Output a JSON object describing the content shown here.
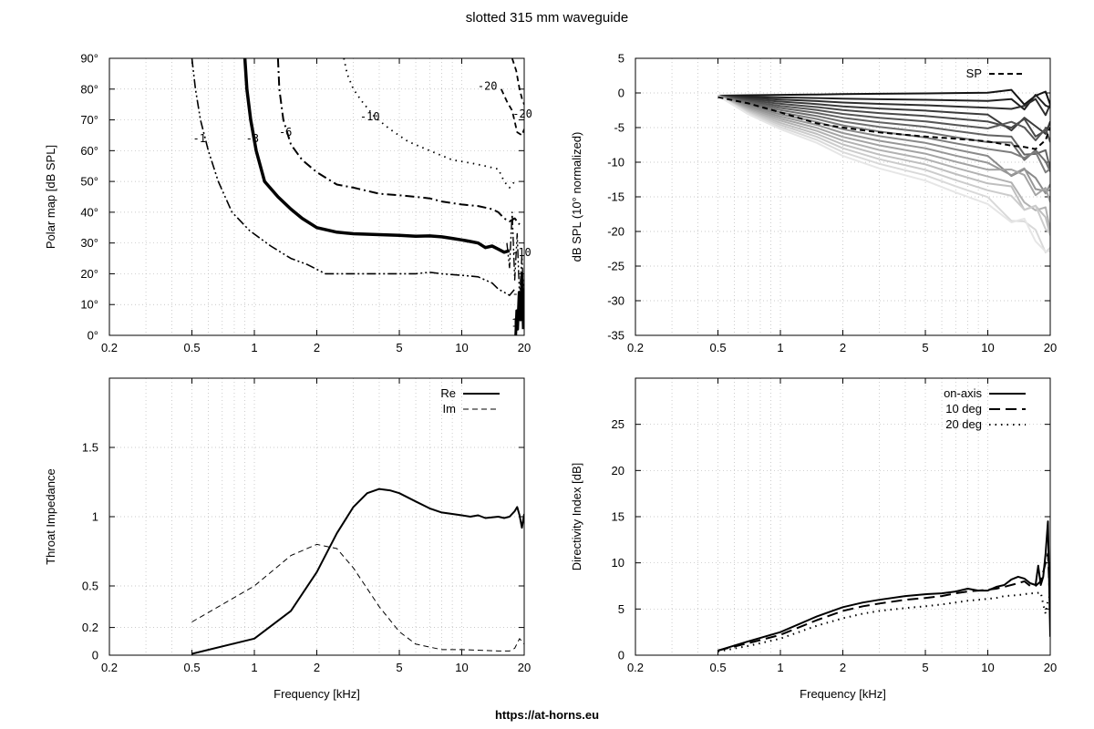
{
  "page": {
    "title": "slotted 315 mm waveguide",
    "footer": "https://at-horns.eu"
  },
  "chart_data": [
    {
      "id": "polar",
      "type": "contour",
      "xscale": "log",
      "xlim": [
        0.2,
        20
      ],
      "ylim": [
        0,
        90
      ],
      "xticks": [
        0.2,
        0.5,
        1,
        2,
        5,
        10,
        20
      ],
      "xtick_labels": [
        "0.2",
        "0.5",
        "1",
        "2",
        "5",
        "10",
        "20"
      ],
      "yticks": [
        0,
        10,
        20,
        30,
        40,
        50,
        60,
        70,
        80,
        90
      ],
      "ytick_labels": [
        "0°",
        "10°",
        "20°",
        "30°",
        "40°",
        "50°",
        "60°",
        "70°",
        "80°",
        "90°"
      ],
      "xlabel": "",
      "ylabel": "Polar map [dB SPL]",
      "series": [
        {
          "level": "-1",
          "dash": "dashdotdot",
          "width": 1.6,
          "points": [
            [
              0.5,
              90
            ],
            [
              0.52,
              80
            ],
            [
              0.55,
              70
            ],
            [
              0.6,
              60
            ],
            [
              0.67,
              50
            ],
            [
              0.78,
              40
            ],
            [
              0.95,
              34
            ],
            [
              1.2,
              29
            ],
            [
              1.5,
              25
            ],
            [
              1.8,
              23
            ],
            [
              2.2,
              20
            ],
            [
              3,
              20
            ],
            [
              4,
              20
            ],
            [
              5,
              20
            ],
            [
              6,
              20
            ],
            [
              7,
              20.5
            ],
            [
              8,
              20
            ],
            [
              10,
              19.5
            ],
            [
              12,
              19
            ],
            [
              14,
              17
            ],
            [
              15,
              15
            ],
            [
              16,
              14
            ],
            [
              17,
              13
            ],
            [
              18,
              15
            ]
          ]
        },
        {
          "level": "-3",
          "dash": "solid",
          "width": 3.5,
          "points": [
            [
              0.9,
              90
            ],
            [
              0.92,
              80
            ],
            [
              0.96,
              70
            ],
            [
              1.02,
              60
            ],
            [
              1.12,
              50
            ],
            [
              1.3,
              45
            ],
            [
              1.5,
              41
            ],
            [
              1.7,
              38
            ],
            [
              2,
              35
            ],
            [
              2.5,
              33.5
            ],
            [
              3,
              33
            ],
            [
              4,
              32.7
            ],
            [
              5,
              32.5
            ],
            [
              6,
              32.2
            ],
            [
              7,
              32.3
            ],
            [
              8,
              32
            ],
            [
              9,
              31.5
            ],
            [
              10,
              31
            ],
            [
              11,
              30.5
            ],
            [
              12,
              30
            ],
            [
              13,
              28.5
            ],
            [
              14,
              29
            ],
            [
              15,
              28
            ],
            [
              16,
              27
            ],
            [
              17,
              27.5
            ]
          ]
        },
        {
          "level": "-6",
          "dash": "dashdot",
          "width": 2,
          "points": [
            [
              1.3,
              90
            ],
            [
              1.32,
              80
            ],
            [
              1.38,
              70
            ],
            [
              1.5,
              62
            ],
            [
              1.7,
              57
            ],
            [
              2,
              53
            ],
            [
              2.5,
              49
            ],
            [
              3,
              48
            ],
            [
              4,
              46
            ],
            [
              5,
              45.5
            ],
            [
              6,
              45
            ],
            [
              7,
              44.5
            ],
            [
              8,
              43.5
            ],
            [
              10,
              42.5
            ],
            [
              12,
              42
            ],
            [
              14,
              41
            ],
            [
              15,
              40
            ],
            [
              16,
              38
            ],
            [
              17,
              37
            ],
            [
              18,
              38
            ],
            [
              19,
              36
            ]
          ]
        },
        {
          "level": "-10",
          "dash": "dotted",
          "width": 1.8,
          "points": [
            [
              2.7,
              90
            ],
            [
              2.8,
              85
            ],
            [
              3,
              80
            ],
            [
              3.3,
              76
            ],
            [
              3.8,
              71
            ],
            [
              4.5,
              67
            ],
            [
              5.5,
              63
            ],
            [
              7,
              60
            ],
            [
              9,
              57
            ],
            [
              11,
              56
            ],
            [
              13,
              55
            ],
            [
              15,
              54
            ],
            [
              16,
              50
            ],
            [
              17,
              48
            ],
            [
              18,
              50
            ]
          ]
        },
        {
          "level": "-20",
          "dash": "dashed",
          "width": 1.8,
          "points": [
            [
              15.5,
              80
            ],
            [
              16.5,
              76
            ],
            [
              17.5,
              73
            ],
            [
              18.5,
              66
            ],
            [
              19.5,
              65
            ],
            [
              20,
              67
            ]
          ]
        },
        {
          "level": "-20",
          "dash": "dashed",
          "width": 1.8,
          "points": [
            [
              17.5,
              90
            ],
            [
              18.3,
              86
            ],
            [
              19,
              80
            ],
            [
              19.5,
              77
            ],
            [
              20,
              75
            ]
          ]
        }
      ],
      "labels": [
        {
          "text": "-1",
          "x": 0.5,
          "y": 64
        },
        {
          "text": "-3",
          "x": 0.9,
          "y": 64
        },
        {
          "text": "-6",
          "x": 1.3,
          "y": 66
        },
        {
          "text": "-10",
          "x": 3.2,
          "y": 71
        },
        {
          "text": "-20",
          "x": 11.8,
          "y": 81
        },
        {
          "text": "-20",
          "x": 17.4,
          "y": 72
        },
        {
          "text": "-10",
          "x": 17.2,
          "y": 27
        },
        {
          "text": "-1",
          "x": 17.3,
          "y": 13.5
        },
        {
          "text": "1",
          "x": 17.2,
          "y": 4
        }
      ]
    },
    {
      "id": "spl",
      "type": "line",
      "xscale": "log",
      "xlim": [
        0.2,
        20
      ],
      "ylim": [
        -35,
        5
      ],
      "xticks": [
        0.2,
        0.5,
        1,
        2,
        5,
        10,
        20
      ],
      "xtick_labels": [
        "0.2",
        "0.5",
        "1",
        "2",
        "5",
        "10",
        "20"
      ],
      "yticks": [
        -35,
        -30,
        -25,
        -20,
        -15,
        -10,
        -5,
        0,
        5
      ],
      "ytick_labels": [
        "-35",
        "-30",
        "-25",
        "-20",
        "-15",
        "-10",
        "-5",
        "0",
        "5"
      ],
      "xlabel": "",
      "ylabel": "dB SPL (10° normalized)",
      "x": [
        0.5,
        0.7,
        1,
        1.5,
        2,
        3,
        5,
        7,
        10,
        13,
        15,
        17,
        19,
        20
      ],
      "final_depths": [
        0.3,
        -1.5,
        -3,
        -4.5,
        -6,
        -7.5,
        -9,
        -10.5,
        -12,
        -13.5,
        -15,
        -16.5,
        -18,
        -19.5,
        -21,
        -22.5,
        -24
      ],
      "sp": {
        "name": "SP",
        "values": [
          -0.6,
          -1.5,
          -2.8,
          -4.4,
          -5,
          -5.7,
          -6.3,
          -6.6,
          -7,
          -7.6,
          -7.8,
          -8.1,
          -6.8,
          -5
        ]
      }
    },
    {
      "id": "impedance",
      "type": "line",
      "xscale": "log",
      "xlim": [
        0.2,
        20
      ],
      "ylim": [
        0,
        2
      ],
      "xticks": [
        0.2,
        0.5,
        1,
        2,
        5,
        10,
        20
      ],
      "xtick_labels": [
        "0.2",
        "0.5",
        "1",
        "2",
        "5",
        "10",
        "20"
      ],
      "yticks": [
        0,
        0.2,
        0.5,
        1,
        1.5
      ],
      "ytick_labels": [
        "0",
        "0.2",
        "0.5",
        "1",
        "1.5"
      ],
      "xlabel": "Frequency [kHz]",
      "ylabel": "Throat Impedance",
      "series": [
        {
          "name": "Re",
          "dash": "solid",
          "width": 2,
          "points": [
            [
              0.5,
              0.01
            ],
            [
              1,
              0.12
            ],
            [
              1.5,
              0.32
            ],
            [
              2,
              0.6
            ],
            [
              2.5,
              0.88
            ],
            [
              3,
              1.07
            ],
            [
              3.5,
              1.17
            ],
            [
              4,
              1.2
            ],
            [
              4.5,
              1.19
            ],
            [
              5,
              1.17
            ],
            [
              6,
              1.11
            ],
            [
              7,
              1.06
            ],
            [
              8,
              1.03
            ],
            [
              9,
              1.02
            ],
            [
              10,
              1.01
            ],
            [
              11,
              1
            ],
            [
              12,
              1.01
            ],
            [
              13,
              0.99
            ],
            [
              15,
              1
            ],
            [
              16,
              0.99
            ],
            [
              17,
              1
            ],
            [
              18,
              1.04
            ],
            [
              18.5,
              1.07
            ],
            [
              19,
              1.01
            ],
            [
              19.5,
              0.92
            ],
            [
              20,
              1.02
            ]
          ]
        },
        {
          "name": "Im",
          "dash": "dashed",
          "width": 1,
          "points": [
            [
              0.5,
              0.24
            ],
            [
              1,
              0.5
            ],
            [
              1.5,
              0.72
            ],
            [
              2,
              0.8
            ],
            [
              2.5,
              0.77
            ],
            [
              3,
              0.63
            ],
            [
              4,
              0.35
            ],
            [
              5,
              0.17
            ],
            [
              6,
              0.08
            ],
            [
              8,
              0.04
            ],
            [
              10,
              0.04
            ],
            [
              15,
              0.03
            ],
            [
              17,
              0.03
            ],
            [
              18,
              0.05
            ],
            [
              19,
              0.12
            ],
            [
              20,
              0.08
            ]
          ]
        }
      ]
    },
    {
      "id": "directivity",
      "type": "line",
      "xscale": "log",
      "xlim": [
        0.2,
        20
      ],
      "ylim": [
        0,
        30
      ],
      "xticks": [
        0.2,
        0.5,
        1,
        2,
        5,
        10,
        20
      ],
      "xtick_labels": [
        "0.2",
        "0.5",
        "1",
        "2",
        "5",
        "10",
        "20"
      ],
      "yticks": [
        0,
        5,
        10,
        15,
        20,
        25
      ],
      "ytick_labels": [
        "0",
        "5",
        "10",
        "15",
        "20",
        "25"
      ],
      "xlabel": "Frequency [kHz]",
      "ylabel": "Directivity Index [dB]",
      "series": [
        {
          "name": "on-axis",
          "dash": "solid",
          "width": 2,
          "points": [
            [
              0.5,
              0.5
            ],
            [
              0.7,
              1.5
            ],
            [
              1,
              2.5
            ],
            [
              1.5,
              4.2
            ],
            [
              2,
              5.2
            ],
            [
              2.5,
              5.7
            ],
            [
              3,
              6
            ],
            [
              4,
              6.4
            ],
            [
              5,
              6.6
            ],
            [
              6,
              6.7
            ],
            [
              7,
              6.9
            ],
            [
              8,
              7.2
            ],
            [
              9,
              7
            ],
            [
              10,
              7
            ],
            [
              11,
              7.4
            ],
            [
              12,
              7.6
            ],
            [
              13,
              8.2
            ],
            [
              14,
              8.5
            ],
            [
              15,
              8.3
            ],
            [
              16,
              7.8
            ],
            [
              17,
              7.6
            ],
            [
              17.5,
              9.7
            ],
            [
              18,
              7.6
            ],
            [
              18.5,
              8.5
            ],
            [
              19,
              11
            ],
            [
              19.5,
              14.5
            ],
            [
              20,
              2
            ]
          ]
        },
        {
          "name": "10 deg",
          "dash": "longdash",
          "width": 2,
          "points": [
            [
              0.5,
              0.5
            ],
            [
              0.7,
              1.3
            ],
            [
              1,
              2.2
            ],
            [
              1.5,
              3.8
            ],
            [
              2,
              4.8
            ],
            [
              2.5,
              5.3
            ],
            [
              3,
              5.6
            ],
            [
              4,
              6
            ],
            [
              5,
              6.2
            ],
            [
              6,
              6.4
            ],
            [
              7,
              6.7
            ],
            [
              8,
              6.9
            ],
            [
              9,
              7
            ],
            [
              10,
              7.1
            ],
            [
              11,
              7.2
            ],
            [
              12,
              7.4
            ],
            [
              14,
              7.8
            ],
            [
              15,
              8
            ],
            [
              16,
              7.5
            ],
            [
              17,
              7.5
            ],
            [
              18,
              8
            ],
            [
              19,
              10
            ],
            [
              19.5,
              11
            ],
            [
              20,
              5
            ]
          ]
        },
        {
          "name": "20 deg",
          "dash": "dotted",
          "width": 2,
          "points": [
            [
              0.5,
              0.4
            ],
            [
              0.7,
              1
            ],
            [
              1,
              1.8
            ],
            [
              1.5,
              3.2
            ],
            [
              2,
              4
            ],
            [
              2.5,
              4.5
            ],
            [
              3,
              4.8
            ],
            [
              4,
              5.1
            ],
            [
              5,
              5.3
            ],
            [
              6,
              5.5
            ],
            [
              7,
              5.7
            ],
            [
              8,
              5.9
            ],
            [
              9,
              6
            ],
            [
              10,
              6.1
            ],
            [
              11,
              6.2
            ],
            [
              12,
              6.4
            ],
            [
              14,
              6.5
            ],
            [
              16,
              6.7
            ],
            [
              17,
              6.7
            ],
            [
              18,
              6.8
            ],
            [
              18.5,
              5.5
            ],
            [
              19,
              4.5
            ],
            [
              19.5,
              6
            ],
            [
              20,
              6.5
            ]
          ]
        }
      ]
    }
  ]
}
